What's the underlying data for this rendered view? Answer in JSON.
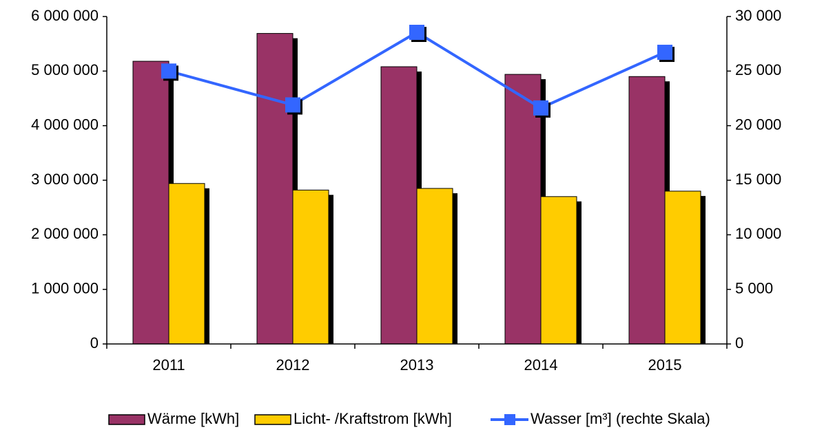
{
  "chart_data": {
    "type": "bar-line",
    "categories": [
      "2011",
      "2012",
      "2013",
      "2014",
      "2015"
    ],
    "series": [
      {
        "name": "Wärme [kWh]",
        "color": "#993366",
        "values": [
          5180000,
          5690000,
          5080000,
          4940000,
          4900000
        ]
      },
      {
        "name": "Licht- /Kraftstrom [kWh]",
        "color": "#ffcc00",
        "values": [
          2940000,
          2820000,
          2850000,
          2700000,
          2800000
        ]
      },
      {
        "name": "Wasser [m³] (rechte Skala)",
        "color": "#3366ff",
        "axis": "y2",
        "values": [
          25000,
          21900,
          28550,
          21620,
          26720
        ]
      }
    ],
    "ylim": [
      0,
      6000000
    ],
    "yticks": [
      0,
      {
        "value": 1000000,
        "label": "1 000 000"
      },
      {
        "value": 2000000,
        "label": "2 000 000"
      },
      {
        "value": 3000000,
        "label": "3 000 000"
      },
      {
        "value": 4000000,
        "label": "4 000 000"
      },
      {
        "value": 5000000,
        "label": "5 000 000"
      },
      {
        "value": 6000000,
        "label": "6 000 000"
      }
    ],
    "y2lim": [
      0,
      30000
    ],
    "y2ticks": [
      0,
      {
        "value": 5000,
        "label": "5 000"
      },
      {
        "value": 10000,
        "label": "10 000"
      },
      {
        "value": 15000,
        "label": "15 000"
      },
      {
        "value": 20000,
        "label": "20 000"
      },
      {
        "value": 25000,
        "label": "25 000"
      },
      {
        "value": 30000,
        "label": "30 000"
      }
    ],
    "legend": "bottom",
    "grid": false
  }
}
